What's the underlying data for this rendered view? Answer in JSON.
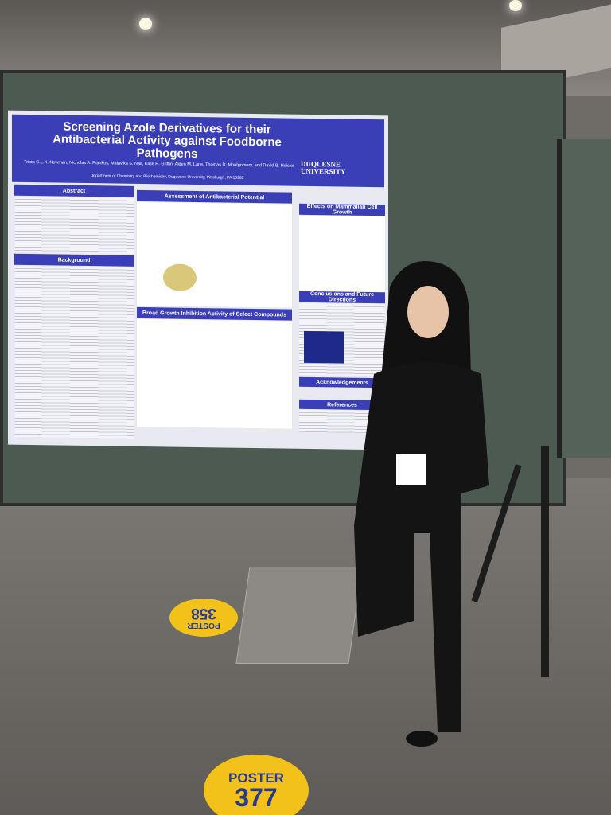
{
  "poster": {
    "title": "Screening Azole Derivatives for their Antibacterial Activity against Foodborne Pathogens",
    "authors": "Trista G.L.X. Newman, Nicholas A. Frankos, Malavika S. Nair, Elise R. Griffin, Alden M. Lane, Thomas D. Montgomery, and David B. Heisler",
    "affiliation": "Department of Chemistry and Biochemistry, Duquesne University, Pittsburgh, PA 15282",
    "logo": "DUQUESNE UNIVERSITY",
    "sections": [
      "Abstract",
      "Background",
      "Assessment of Antibacterial Potential",
      "Effects on Mammalian Cell Growth",
      "Broad Growth Inhibition Activity of Select Compounds",
      "Conclusions and Future Directions",
      "Acknowledgements",
      "References"
    ]
  },
  "floor_markers": [
    {
      "label": "POSTER",
      "number": "358"
    },
    {
      "label": "POSTER",
      "number": "377"
    }
  ]
}
